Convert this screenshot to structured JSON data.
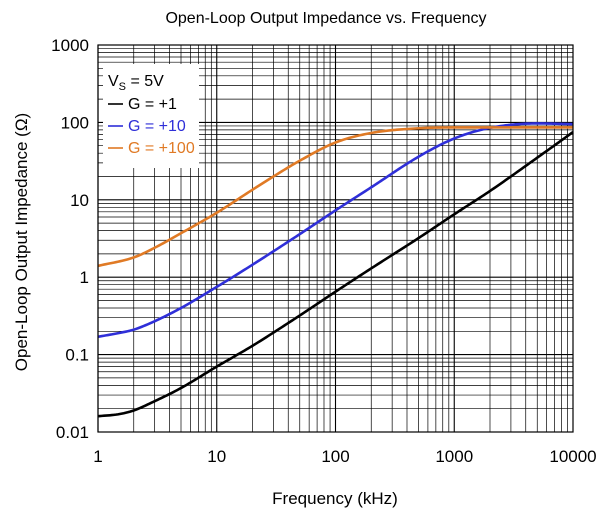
{
  "chart_data": {
    "type": "line",
    "title": "Open-Loop Output Impedance vs. Frequency",
    "xlabel": "Frequency (kHz)",
    "ylabel": "Open-Loop Output Impedance (Ω)",
    "x_scale": "log",
    "y_scale": "log",
    "xlim": [
      1,
      10000
    ],
    "ylim": [
      0.01,
      1000
    ],
    "x_ticks": [
      "1",
      "10",
      "100",
      "1000",
      "10000"
    ],
    "y_ticks": [
      "0.01",
      "0.1",
      "1",
      "10",
      "100",
      "1000"
    ],
    "grid": true,
    "legend_placement": "top-left",
    "condition": {
      "symbol": "V",
      "subscript": "S",
      "value": " = 5V"
    },
    "series": [
      {
        "name": "G = +1",
        "color": "#000000",
        "x": [
          1,
          1.5,
          2,
          3,
          5,
          10,
          20,
          50,
          100,
          200,
          500,
          1000,
          2000,
          5000,
          10000
        ],
        "y": [
          0.016,
          0.017,
          0.019,
          0.025,
          0.037,
          0.07,
          0.13,
          0.32,
          0.65,
          1.3,
          3.2,
          6.5,
          13,
          35,
          75
        ]
      },
      {
        "name": "G = +10",
        "color": "#2f2fd8",
        "x": [
          1,
          1.5,
          2,
          3,
          5,
          10,
          20,
          50,
          100,
          200,
          500,
          1000,
          2000,
          5000,
          10000
        ],
        "y": [
          0.17,
          0.19,
          0.21,
          0.27,
          0.4,
          0.75,
          1.45,
          3.6,
          7.3,
          14.5,
          36,
          62,
          85,
          97,
          95
        ]
      },
      {
        "name": "G = +100",
        "color": "#e07a25",
        "x": [
          1,
          2,
          3,
          5,
          10,
          20,
          30,
          50,
          100,
          200,
          500,
          1000,
          10000
        ],
        "y": [
          1.4,
          1.8,
          2.4,
          3.7,
          6.8,
          13.5,
          20,
          32,
          55,
          73,
          84,
          86,
          86
        ]
      }
    ]
  }
}
